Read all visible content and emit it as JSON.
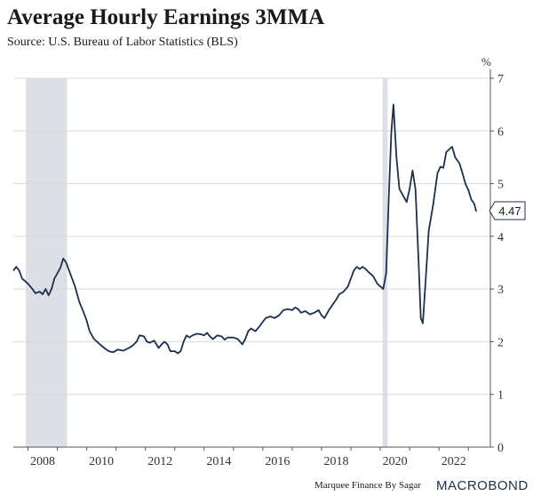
{
  "chart_data": {
    "type": "line",
    "title": "Average Hourly Earnings 3MMA",
    "subtitle": "Source: U.S. Bureau of Labor Statistics (BLS)",
    "ylabel": "%",
    "xlabel": "",
    "xlim": [
      2007.5,
      2023.75
    ],
    "ylim": [
      0,
      7
    ],
    "yticks": [
      "0",
      "1",
      "2",
      "3",
      "4",
      "5",
      "6",
      "7"
    ],
    "xticks": [
      "2008",
      "2010",
      "2012",
      "2014",
      "2016",
      "2018",
      "2020",
      "2022"
    ],
    "recessions": [
      [
        2007.92,
        2009.33
      ],
      [
        2020.08,
        2020.25
      ]
    ],
    "last_value_label": "4.47",
    "line_color": "#1c2f4f",
    "recession_color": "#dcdfe5",
    "series": [
      {
        "name": "Average Hourly Earnings 3MMA",
        "points": [
          [
            2007.5,
            3.35
          ],
          [
            2007.6,
            3.42
          ],
          [
            2007.7,
            3.35
          ],
          [
            2007.8,
            3.2
          ],
          [
            2008.0,
            3.1
          ],
          [
            2008.15,
            3.0
          ],
          [
            2008.25,
            2.92
          ],
          [
            2008.4,
            2.95
          ],
          [
            2008.5,
            2.9
          ],
          [
            2008.6,
            3.0
          ],
          [
            2008.7,
            2.88
          ],
          [
            2008.8,
            3.0
          ],
          [
            2008.9,
            3.2
          ],
          [
            2009.0,
            3.3
          ],
          [
            2009.1,
            3.4
          ],
          [
            2009.2,
            3.58
          ],
          [
            2009.3,
            3.5
          ],
          [
            2009.5,
            3.2
          ],
          [
            2009.6,
            3.05
          ],
          [
            2009.75,
            2.75
          ],
          [
            2009.9,
            2.55
          ],
          [
            2010.0,
            2.4
          ],
          [
            2010.1,
            2.2
          ],
          [
            2010.25,
            2.05
          ],
          [
            2010.45,
            1.95
          ],
          [
            2010.6,
            1.88
          ],
          [
            2010.75,
            1.82
          ],
          [
            2010.9,
            1.8
          ],
          [
            2011.05,
            1.85
          ],
          [
            2011.25,
            1.83
          ],
          [
            2011.4,
            1.87
          ],
          [
            2011.55,
            1.92
          ],
          [
            2011.7,
            2.0
          ],
          [
            2011.8,
            2.12
          ],
          [
            2011.95,
            2.1
          ],
          [
            2012.05,
            2.0
          ],
          [
            2012.15,
            1.98
          ],
          [
            2012.3,
            2.02
          ],
          [
            2012.45,
            1.88
          ],
          [
            2012.55,
            1.95
          ],
          [
            2012.65,
            2.0
          ],
          [
            2012.75,
            1.95
          ],
          [
            2012.85,
            1.82
          ],
          [
            2013.0,
            1.82
          ],
          [
            2013.1,
            1.78
          ],
          [
            2013.2,
            1.82
          ],
          [
            2013.3,
            2.0
          ],
          [
            2013.4,
            2.12
          ],
          [
            2013.5,
            2.08
          ],
          [
            2013.6,
            2.12
          ],
          [
            2013.75,
            2.15
          ],
          [
            2013.9,
            2.14
          ],
          [
            2014.0,
            2.12
          ],
          [
            2014.1,
            2.17
          ],
          [
            2014.2,
            2.1
          ],
          [
            2014.3,
            2.05
          ],
          [
            2014.45,
            2.12
          ],
          [
            2014.6,
            2.1
          ],
          [
            2014.7,
            2.04
          ],
          [
            2014.8,
            2.08
          ],
          [
            2015.0,
            2.08
          ],
          [
            2015.15,
            2.05
          ],
          [
            2015.3,
            1.95
          ],
          [
            2015.4,
            2.05
          ],
          [
            2015.5,
            2.2
          ],
          [
            2015.6,
            2.25
          ],
          [
            2015.75,
            2.2
          ],
          [
            2015.9,
            2.3
          ],
          [
            2016.0,
            2.38
          ],
          [
            2016.1,
            2.45
          ],
          [
            2016.25,
            2.48
          ],
          [
            2016.4,
            2.45
          ],
          [
            2016.55,
            2.5
          ],
          [
            2016.7,
            2.6
          ],
          [
            2016.85,
            2.62
          ],
          [
            2017.0,
            2.6
          ],
          [
            2017.1,
            2.65
          ],
          [
            2017.2,
            2.62
          ],
          [
            2017.3,
            2.55
          ],
          [
            2017.45,
            2.58
          ],
          [
            2017.6,
            2.52
          ],
          [
            2017.75,
            2.55
          ],
          [
            2017.9,
            2.6
          ],
          [
            2018.0,
            2.5
          ],
          [
            2018.1,
            2.45
          ],
          [
            2018.25,
            2.6
          ],
          [
            2018.4,
            2.72
          ],
          [
            2018.5,
            2.8
          ],
          [
            2018.6,
            2.9
          ],
          [
            2018.75,
            2.95
          ],
          [
            2018.9,
            3.05
          ],
          [
            2019.0,
            3.2
          ],
          [
            2019.1,
            3.35
          ],
          [
            2019.2,
            3.42
          ],
          [
            2019.3,
            3.38
          ],
          [
            2019.4,
            3.42
          ],
          [
            2019.5,
            3.38
          ],
          [
            2019.6,
            3.32
          ],
          [
            2019.75,
            3.25
          ],
          [
            2019.9,
            3.1
          ],
          [
            2020.0,
            3.05
          ],
          [
            2020.1,
            3.0
          ],
          [
            2020.2,
            3.3
          ],
          [
            2020.3,
            4.9
          ],
          [
            2020.38,
            6.0
          ],
          [
            2020.45,
            6.5
          ],
          [
            2020.55,
            5.5
          ],
          [
            2020.65,
            4.9
          ],
          [
            2020.75,
            4.8
          ],
          [
            2020.9,
            4.65
          ],
          [
            2021.0,
            4.9
          ],
          [
            2021.1,
            5.25
          ],
          [
            2021.2,
            4.9
          ],
          [
            2021.3,
            3.6
          ],
          [
            2021.38,
            2.45
          ],
          [
            2021.45,
            2.35
          ],
          [
            2021.55,
            3.2
          ],
          [
            2021.65,
            4.1
          ],
          [
            2021.8,
            4.6
          ],
          [
            2021.95,
            5.2
          ],
          [
            2022.05,
            5.32
          ],
          [
            2022.15,
            5.3
          ],
          [
            2022.25,
            5.6
          ],
          [
            2022.35,
            5.65
          ],
          [
            2022.45,
            5.7
          ],
          [
            2022.55,
            5.5
          ],
          [
            2022.7,
            5.38
          ],
          [
            2022.8,
            5.2
          ],
          [
            2022.9,
            5.0
          ],
          [
            2023.0,
            4.88
          ],
          [
            2023.1,
            4.7
          ],
          [
            2023.2,
            4.62
          ],
          [
            2023.27,
            4.47
          ]
        ]
      }
    ],
    "footer_credit": "Marquee Finance By Sagar",
    "brand": "MACROBOND"
  }
}
